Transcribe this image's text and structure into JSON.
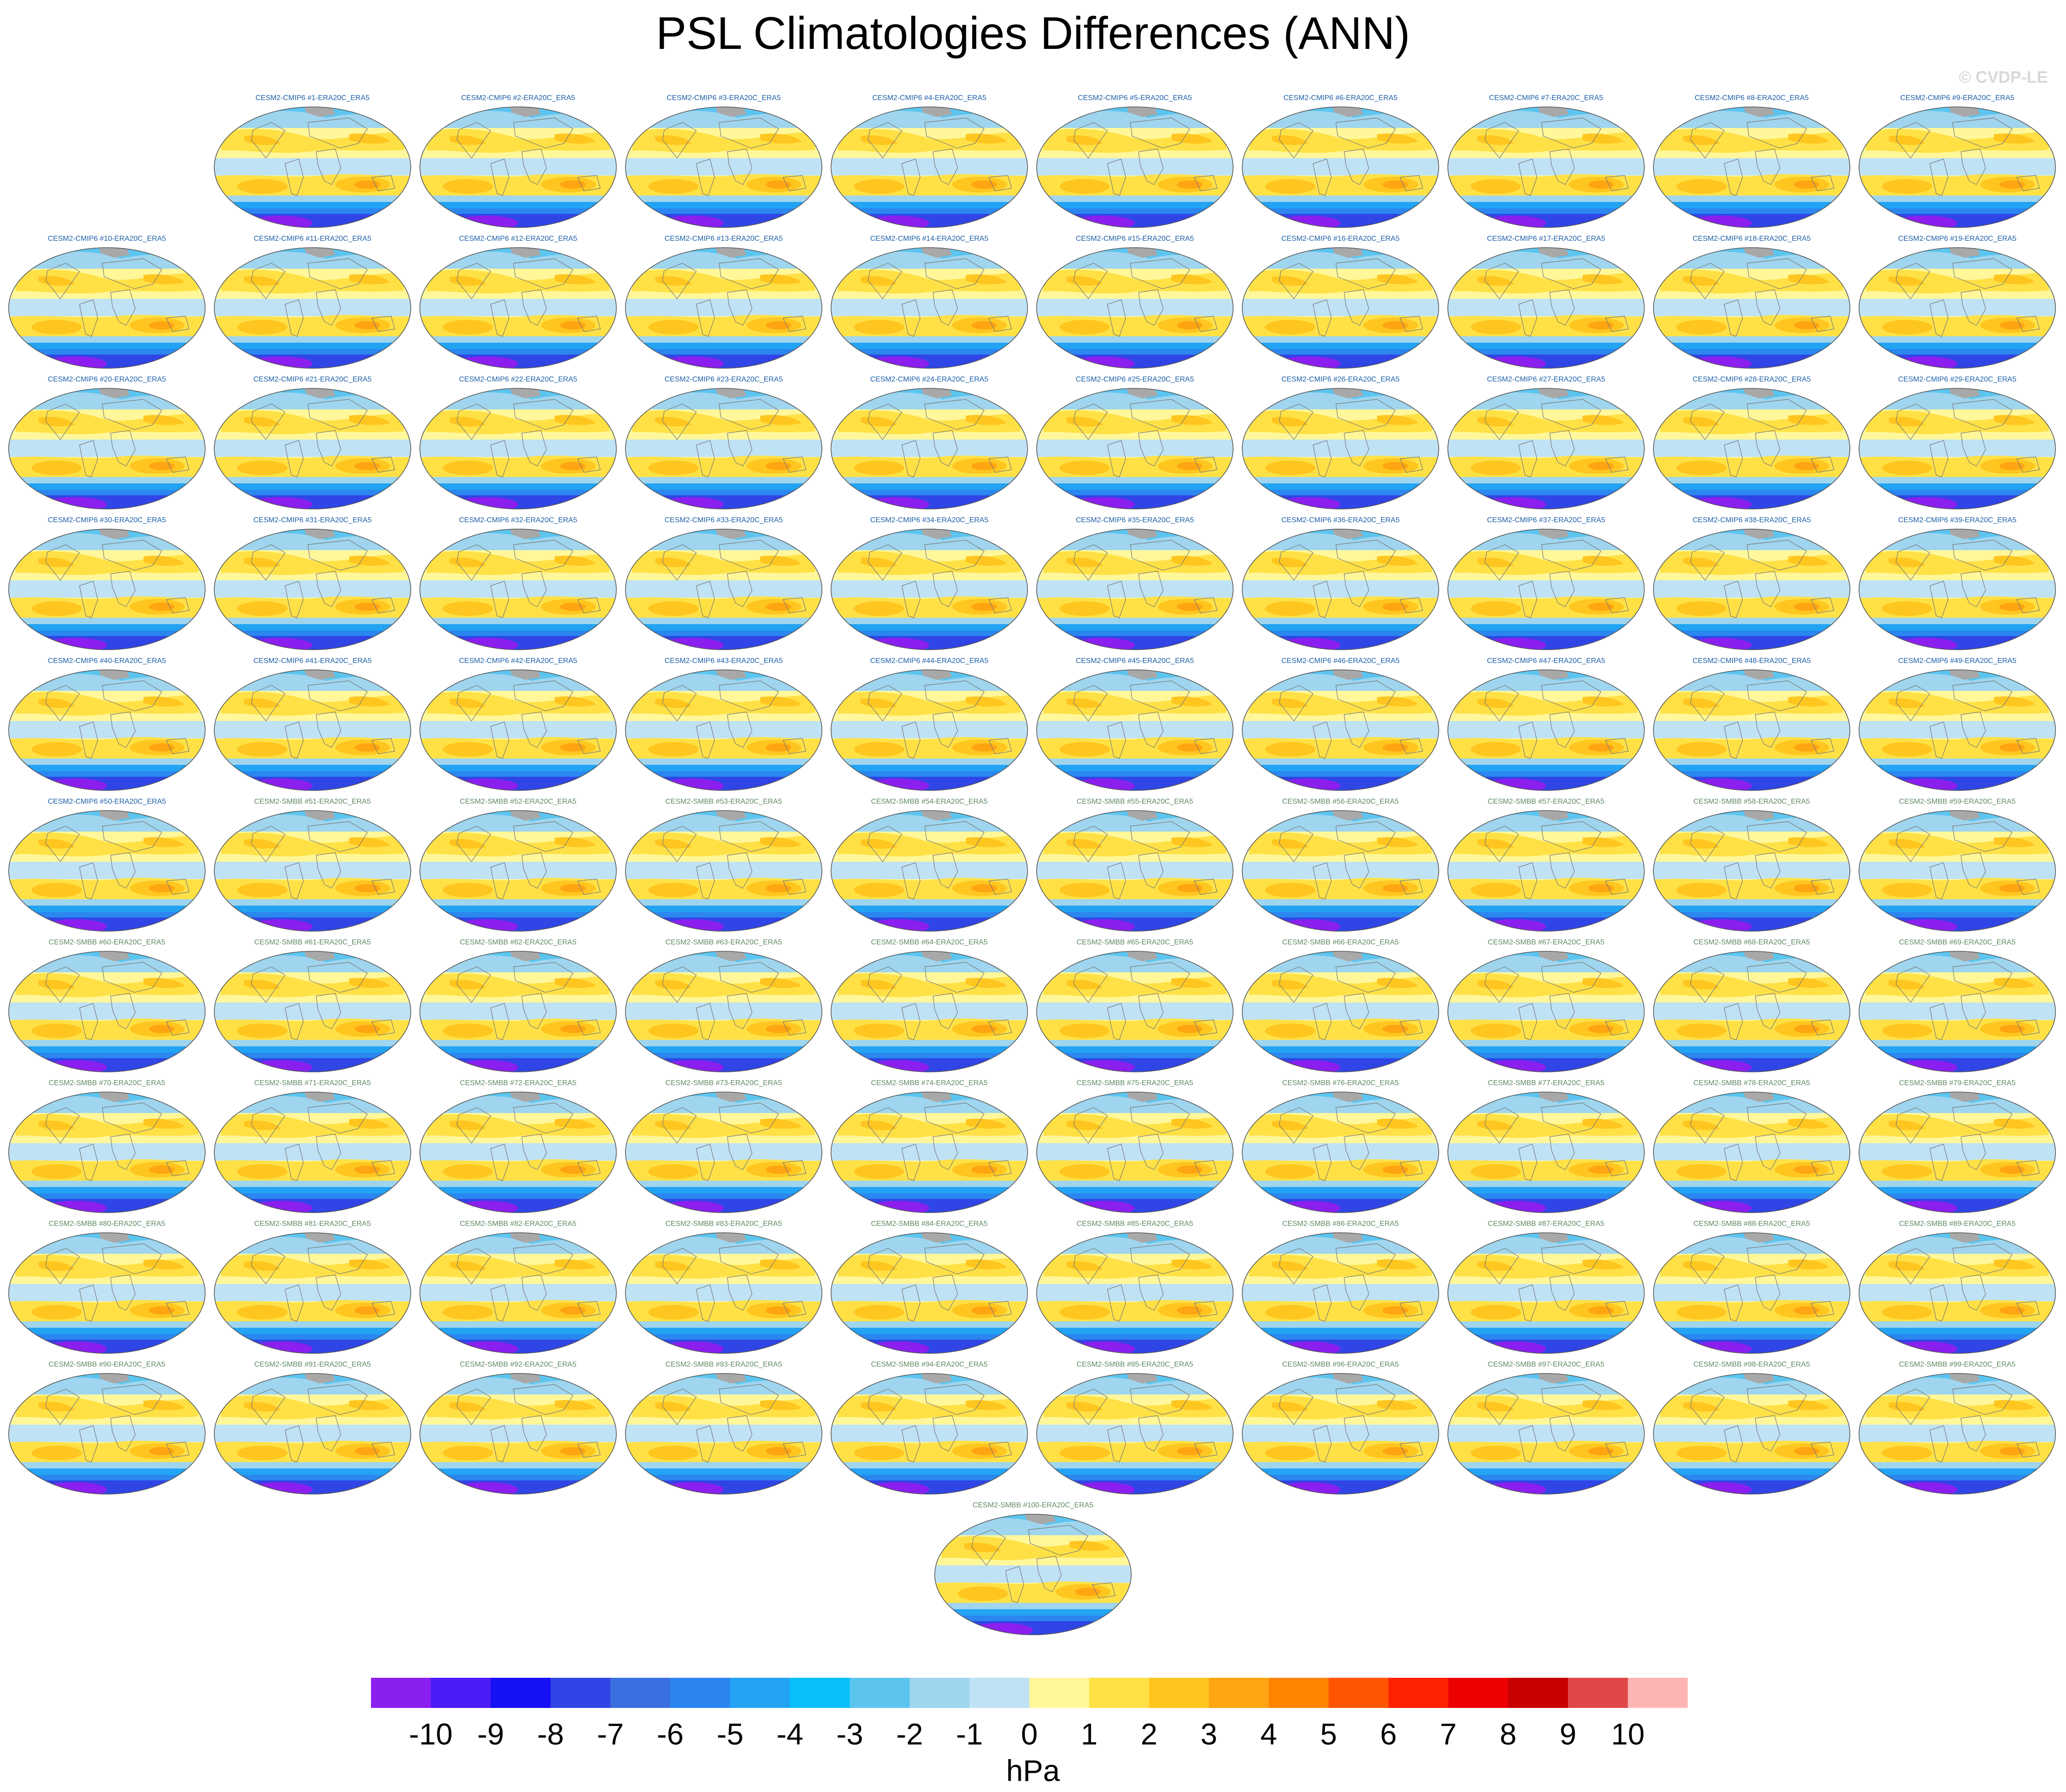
{
  "title": "PSL Climatologies Differences (ANN)",
  "watermark": "© CVDP-LE",
  "label_colors": {
    "CMIP6": "#1d5fa8",
    "SMBB": "#5f8a63"
  },
  "panels": [
    "CESM2-CMIP6 #1-ERA20C_ERA5",
    "CESM2-CMIP6 #2-ERA20C_ERA5",
    "CESM2-CMIP6 #3-ERA20C_ERA5",
    "CESM2-CMIP6 #4-ERA20C_ERA5",
    "CESM2-CMIP6 #5-ERA20C_ERA5",
    "CESM2-CMIP6 #6-ERA20C_ERA5",
    "CESM2-CMIP6 #7-ERA20C_ERA5",
    "CESM2-CMIP6 #8-ERA20C_ERA5",
    "CESM2-CMIP6 #9-ERA20C_ERA5",
    "CESM2-CMIP6 #10-ERA20C_ERA5",
    "CESM2-CMIP6 #11-ERA20C_ERA5",
    "CESM2-CMIP6 #12-ERA20C_ERA5",
    "CESM2-CMIP6 #13-ERA20C_ERA5",
    "CESM2-CMIP6 #14-ERA20C_ERA5",
    "CESM2-CMIP6 #15-ERA20C_ERA5",
    "CESM2-CMIP6 #16-ERA20C_ERA5",
    "CESM2-CMIP6 #17-ERA20C_ERA5",
    "CESM2-CMIP6 #18-ERA20C_ERA5",
    "CESM2-CMIP6 #19-ERA20C_ERA5",
    "CESM2-CMIP6 #20-ERA20C_ERA5",
    "CESM2-CMIP6 #21-ERA20C_ERA5",
    "CESM2-CMIP6 #22-ERA20C_ERA5",
    "CESM2-CMIP6 #23-ERA20C_ERA5",
    "CESM2-CMIP6 #24-ERA20C_ERA5",
    "CESM2-CMIP6 #25-ERA20C_ERA5",
    "CESM2-CMIP6 #26-ERA20C_ERA5",
    "CESM2-CMIP6 #27-ERA20C_ERA5",
    "CESM2-CMIP6 #28-ERA20C_ERA5",
    "CESM2-CMIP6 #29-ERA20C_ERA5",
    "CESM2-CMIP6 #30-ERA20C_ERA5",
    "CESM2-CMIP6 #31-ERA20C_ERA5",
    "CESM2-CMIP6 #32-ERA20C_ERA5",
    "CESM2-CMIP6 #33-ERA20C_ERA5",
    "CESM2-CMIP6 #34-ERA20C_ERA5",
    "CESM2-CMIP6 #35-ERA20C_ERA5",
    "CESM2-CMIP6 #36-ERA20C_ERA5",
    "CESM2-CMIP6 #37-ERA20C_ERA5",
    "CESM2-CMIP6 #38-ERA20C_ERA5",
    "CESM2-CMIP6 #39-ERA20C_ERA5",
    "CESM2-CMIP6 #40-ERA20C_ERA5",
    "CESM2-CMIP6 #41-ERA20C_ERA5",
    "CESM2-CMIP6 #42-ERA20C_ERA5",
    "CESM2-CMIP6 #43-ERA20C_ERA5",
    "CESM2-CMIP6 #44-ERA20C_ERA5",
    "CESM2-CMIP6 #45-ERA20C_ERA5",
    "CESM2-CMIP6 #46-ERA20C_ERA5",
    "CESM2-CMIP6 #47-ERA20C_ERA5",
    "CESM2-CMIP6 #48-ERA20C_ERA5",
    "CESM2-CMIP6 #49-ERA20C_ERA5",
    "CESM2-CMIP6 #50-ERA20C_ERA5",
    "CESM2-SMBB #51-ERA20C_ERA5",
    "CESM2-SMBB #52-ERA20C_ERA5",
    "CESM2-SMBB #53-ERA20C_ERA5",
    "CESM2-SMBB #54-ERA20C_ERA5",
    "CESM2-SMBB #55-ERA20C_ERA5",
    "CESM2-SMBB #56-ERA20C_ERA5",
    "CESM2-SMBB #57-ERA20C_ERA5",
    "CESM2-SMBB #58-ERA20C_ERA5",
    "CESM2-SMBB #59-ERA20C_ERA5",
    "CESM2-SMBB #60-ERA20C_ERA5",
    "CESM2-SMBB #61-ERA20C_ERA5",
    "CESM2-SMBB #62-ERA20C_ERA5",
    "CESM2-SMBB #63-ERA20C_ERA5",
    "CESM2-SMBB #64-ERA20C_ERA5",
    "CESM2-SMBB #65-ERA20C_ERA5",
    "CESM2-SMBB #66-ERA20C_ERA5",
    "CESM2-SMBB #67-ERA20C_ERA5",
    "CESM2-SMBB #68-ERA20C_ERA5",
    "CESM2-SMBB #69-ERA20C_ERA5",
    "CESM2-SMBB #70-ERA20C_ERA5",
    "CESM2-SMBB #71-ERA20C_ERA5",
    "CESM2-SMBB #72-ERA20C_ERA5",
    "CESM2-SMBB #73-ERA20C_ERA5",
    "CESM2-SMBB #74-ERA20C_ERA5",
    "CESM2-SMBB #75-ERA20C_ERA5",
    "CESM2-SMBB #76-ERA20C_ERA5",
    "CESM2-SMBB #77-ERA20C_ERA5",
    "CESM2-SMBB #78-ERA20C_ERA5",
    "CESM2-SMBB #79-ERA20C_ERA5",
    "CESM2-SMBB #80-ERA20C_ERA5",
    "CESM2-SMBB #81-ERA20C_ERA5",
    "CESM2-SMBB #82-ERA20C_ERA5",
    "CESM2-SMBB #83-ERA20C_ERA5",
    "CESM2-SMBB #84-ERA20C_ERA5",
    "CESM2-SMBB #85-ERA20C_ERA5",
    "CESM2-SMBB #86-ERA20C_ERA5",
    "CESM2-SMBB #87-ERA20C_ERA5",
    "CESM2-SMBB #88-ERA20C_ERA5",
    "CESM2-SMBB #89-ERA20C_ERA5",
    "CESM2-SMBB #90-ERA20C_ERA5",
    "CESM2-SMBB #91-ERA20C_ERA5",
    "CESM2-SMBB #92-ERA20C_ERA5",
    "CESM2-SMBB #93-ERA20C_ERA5",
    "CESM2-SMBB #94-ERA20C_ERA5",
    "CESM2-SMBB #95-ERA20C_ERA5",
    "CESM2-SMBB #96-ERA20C_ERA5",
    "CESM2-SMBB #97-ERA20C_ERA5",
    "CESM2-SMBB #98-ERA20C_ERA5",
    "CESM2-SMBB #99-ERA20C_ERA5",
    "CESM2-SMBB #100-ERA20C_ERA5"
  ],
  "chart_data": {
    "type": "heatmap",
    "title": "PSL Climatologies Differences (ANN)",
    "projection": "robinson",
    "panel_count": 100,
    "colorbar": {
      "unit": "hPa",
      "tick_labels": [
        "-10",
        "-9",
        "-8",
        "-7",
        "-6",
        "-5",
        "-4",
        "-3",
        "-2",
        "-1",
        "0",
        "1",
        "2",
        "3",
        "4",
        "5",
        "6",
        "7",
        "8",
        "9",
        "10"
      ],
      "colors": [
        "#8b1ff0",
        "#4d1af8",
        "#1610f4",
        "#3045e6",
        "#3a6fe0",
        "#2b86f0",
        "#22a3f4",
        "#09c1f8",
        "#5bc5f0",
        "#9fd5ee",
        "#bfe2f5",
        "#fff79a",
        "#ffe146",
        "#ffc61f",
        "#ffa511",
        "#ff8400",
        "#ff5500",
        "#ff2200",
        "#ec0000",
        "#c70000",
        "#e04848",
        "#ffb4b4"
      ],
      "position": "bottom"
    }
  }
}
